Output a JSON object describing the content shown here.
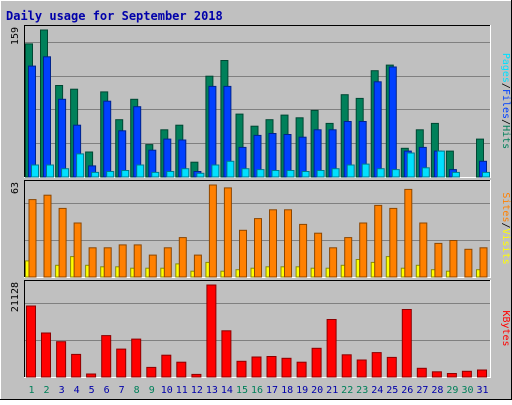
{
  "title": "Daily usage for September 2018",
  "colors": {
    "background": "#c0c0c0",
    "title": "#0000aa",
    "hits": "#00805a",
    "files": "#0040ff",
    "pages": "#00e0ff",
    "visits": "#ffff00",
    "sites": "#ff8000",
    "kbytes": "#ff0000",
    "weekend_day": "#00805a",
    "weekday": "#0000aa"
  },
  "chart_data": {
    "type": "bar",
    "categories": [
      "1",
      "2",
      "3",
      "4",
      "5",
      "6",
      "7",
      "8",
      "9",
      "10",
      "11",
      "12",
      "13",
      "14",
      "15",
      "16",
      "17",
      "18",
      "19",
      "20",
      "21",
      "22",
      "23",
      "24",
      "25",
      "26",
      "27",
      "28",
      "29",
      "30",
      "31"
    ],
    "weekend_days": [
      "1",
      "2",
      "8",
      "9",
      "15",
      "16",
      "22",
      "23",
      "29",
      "30"
    ],
    "panels": [
      {
        "id": "hits-files-pages",
        "ymax_label": "159",
        "ymax": 159,
        "right_labels": [
          "Pages",
          "/",
          "Files",
          "/",
          "Hits"
        ],
        "series": [
          {
            "name": "Hits",
            "values": [
              144,
              159,
              99,
              95,
              27,
              92,
              62,
              84,
              35,
              51,
              56,
              16,
              109,
              126,
              68,
              55,
              62,
              67,
              64,
              72,
              58,
              89,
              85,
              115,
              121,
              31,
              51,
              58,
              28,
              0,
              41
            ]
          },
          {
            "name": "Files",
            "values": [
              120,
              130,
              84,
              56,
              12,
              82,
              50,
              76,
              29,
              41,
              40,
              6,
              98,
              98,
              32,
              45,
              47,
              46,
              43,
              51,
              51,
              60,
              60,
              103,
              119,
              28,
              32,
              28,
              8,
              0,
              17
            ]
          },
          {
            "name": "Pages",
            "values": [
              13,
              13,
              9,
              25,
              5,
              6,
              7,
              13,
              5,
              6,
              9,
              4,
              13,
              17,
              9,
              8,
              7,
              7,
              6,
              7,
              9,
              13,
              14,
              9,
              8,
              26,
              10,
              28,
              5,
              0,
              5
            ]
          }
        ]
      },
      {
        "id": "visits-sites",
        "ymax_label": "63",
        "ymax": 63,
        "right_labels": [
          "Sites",
          "/",
          "Visits"
        ],
        "series": [
          {
            "name": "Visits",
            "values": [
              11,
              0,
              8,
              14,
              8,
              7,
              7,
              6,
              6,
              6,
              9,
              4,
              10,
              4,
              5,
              6,
              7,
              7,
              7,
              6,
              6,
              8,
              12,
              10,
              14,
              6,
              8,
              5,
              4,
              0,
              5
            ]
          },
          {
            "name": "Sites",
            "values": [
              53,
              56,
              47,
              37,
              20,
              20,
              22,
              22,
              15,
              20,
              27,
              15,
              63,
              61,
              32,
              40,
              46,
              46,
              36,
              30,
              20,
              27,
              37,
              49,
              47,
              60,
              37,
              23,
              25,
              19,
              20
            ]
          }
        ]
      },
      {
        "id": "kbytes",
        "ymax_label": "21128",
        "ymax": 21128,
        "right_labels": [
          "KBytes"
        ],
        "series": [
          {
            "name": "KBytes",
            "values": [
              16300,
              10100,
              8100,
              5200,
              700,
              9500,
              6400,
              8700,
              2200,
              5000,
              3400,
              600,
              21128,
              10600,
              3600,
              4600,
              4700,
              4300,
              3400,
              6600,
              13200,
              5100,
              3900,
              5600,
              4500,
              15500,
              2000,
              1200,
              800,
              1300,
              1600
            ]
          }
        ]
      }
    ]
  }
}
